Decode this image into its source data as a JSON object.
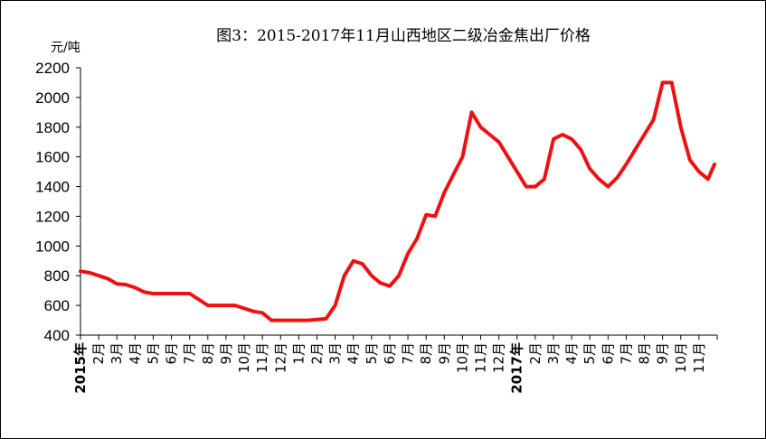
{
  "chart_data": {
    "type": "line",
    "title": "图3：2015-2017年11月山西地区二级冶金焦出厂价格",
    "ylabel": "元/吨",
    "xlabel": "",
    "ylim": [
      400,
      2200
    ],
    "yticks": [
      400,
      600,
      800,
      1000,
      1200,
      1400,
      1600,
      1800,
      2000,
      2200
    ],
    "grid": false,
    "legend": "none",
    "line_color": "#ee1111",
    "x_tick_labels": [
      "2015年",
      "2月",
      "3月",
      "4月",
      "5月",
      "6月",
      "7月",
      "8月",
      "9月",
      "10月",
      "11月",
      "12月",
      "1月",
      "2月",
      "3月",
      "4月",
      "5月",
      "6月",
      "7月",
      "8月",
      "9月",
      "10月",
      "11月",
      "12月",
      "2017年",
      "2月",
      "3月",
      "4月",
      "5月",
      "6月",
      "7月",
      "8月",
      "9月",
      "10月",
      "11月"
    ],
    "series": [
      {
        "name": "",
        "x": [
          0,
          0.5,
          1,
          1.5,
          2,
          2.5,
          3,
          3.5,
          4,
          4.5,
          5,
          5.5,
          6,
          6.5,
          7,
          7.5,
          8,
          8.5,
          9,
          9.5,
          10,
          10.5,
          11,
          11.5,
          12,
          12.5,
          13,
          13.5,
          14,
          14.5,
          15,
          15.5,
          16,
          16.5,
          17,
          17.5,
          18,
          18.5,
          19,
          19.5,
          20,
          20.5,
          21,
          21.5,
          22,
          22.5,
          23,
          23.5,
          24,
          24.5,
          25,
          25.5,
          26,
          26.5,
          27,
          27.5,
          28,
          28.5,
          29,
          29.5,
          30,
          30.5,
          31,
          31.5,
          32,
          32.5,
          33,
          33.5,
          34,
          34.5,
          34.85
        ],
        "values": [
          830,
          820,
          800,
          780,
          745,
          740,
          720,
          690,
          680,
          680,
          680,
          680,
          680,
          640,
          600,
          600,
          600,
          600,
          580,
          560,
          550,
          500,
          500,
          500,
          500,
          500,
          505,
          510,
          600,
          800,
          900,
          880,
          800,
          750,
          730,
          800,
          950,
          1050,
          1210,
          1200,
          1360,
          1480,
          1600,
          1900,
          1800,
          1750,
          1700,
          1600,
          1500,
          1400,
          1400,
          1450,
          1720,
          1750,
          1720,
          1650,
          1520,
          1450,
          1400,
          1460,
          1550,
          1650,
          1750,
          1850,
          2100,
          2100,
          1800,
          1580,
          1500,
          1450,
          1550
        ]
      }
    ]
  }
}
